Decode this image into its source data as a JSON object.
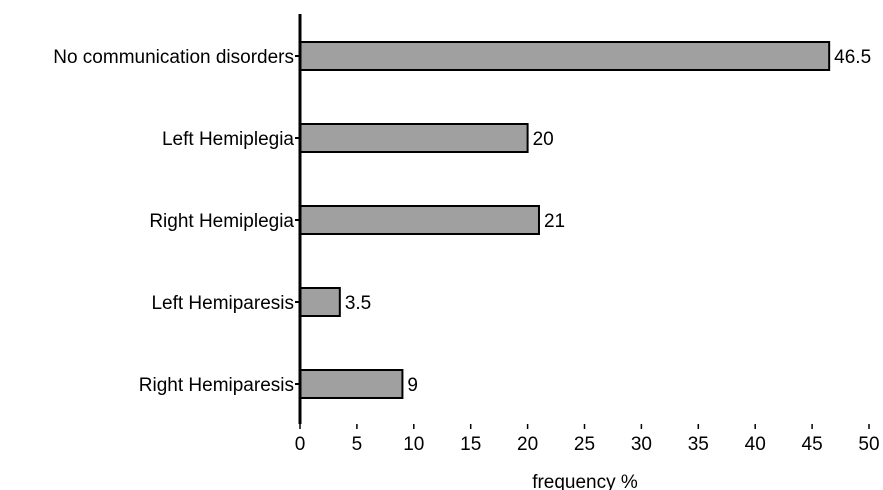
{
  "chart_data": {
    "type": "bar",
    "orientation": "horizontal",
    "categories": [
      "No communication disorders",
      "Left Hemiplegia",
      "Right Hemiplegia",
      "Left Hemiparesis",
      "Right Hemiparesis"
    ],
    "values": [
      46.5,
      20,
      21,
      3.5,
      9
    ],
    "value_labels": [
      "46.5",
      "20",
      "21",
      "3.5",
      "9"
    ],
    "xlabel": "frequency %",
    "ylabel": "",
    "title": "",
    "xlim": [
      0,
      50
    ],
    "xticks": [
      0,
      5,
      10,
      15,
      20,
      25,
      30,
      35,
      40,
      45,
      50
    ],
    "grid": false,
    "legend": "none",
    "bar_color": "#a0a0a0",
    "bar_stroke": "#000000"
  }
}
